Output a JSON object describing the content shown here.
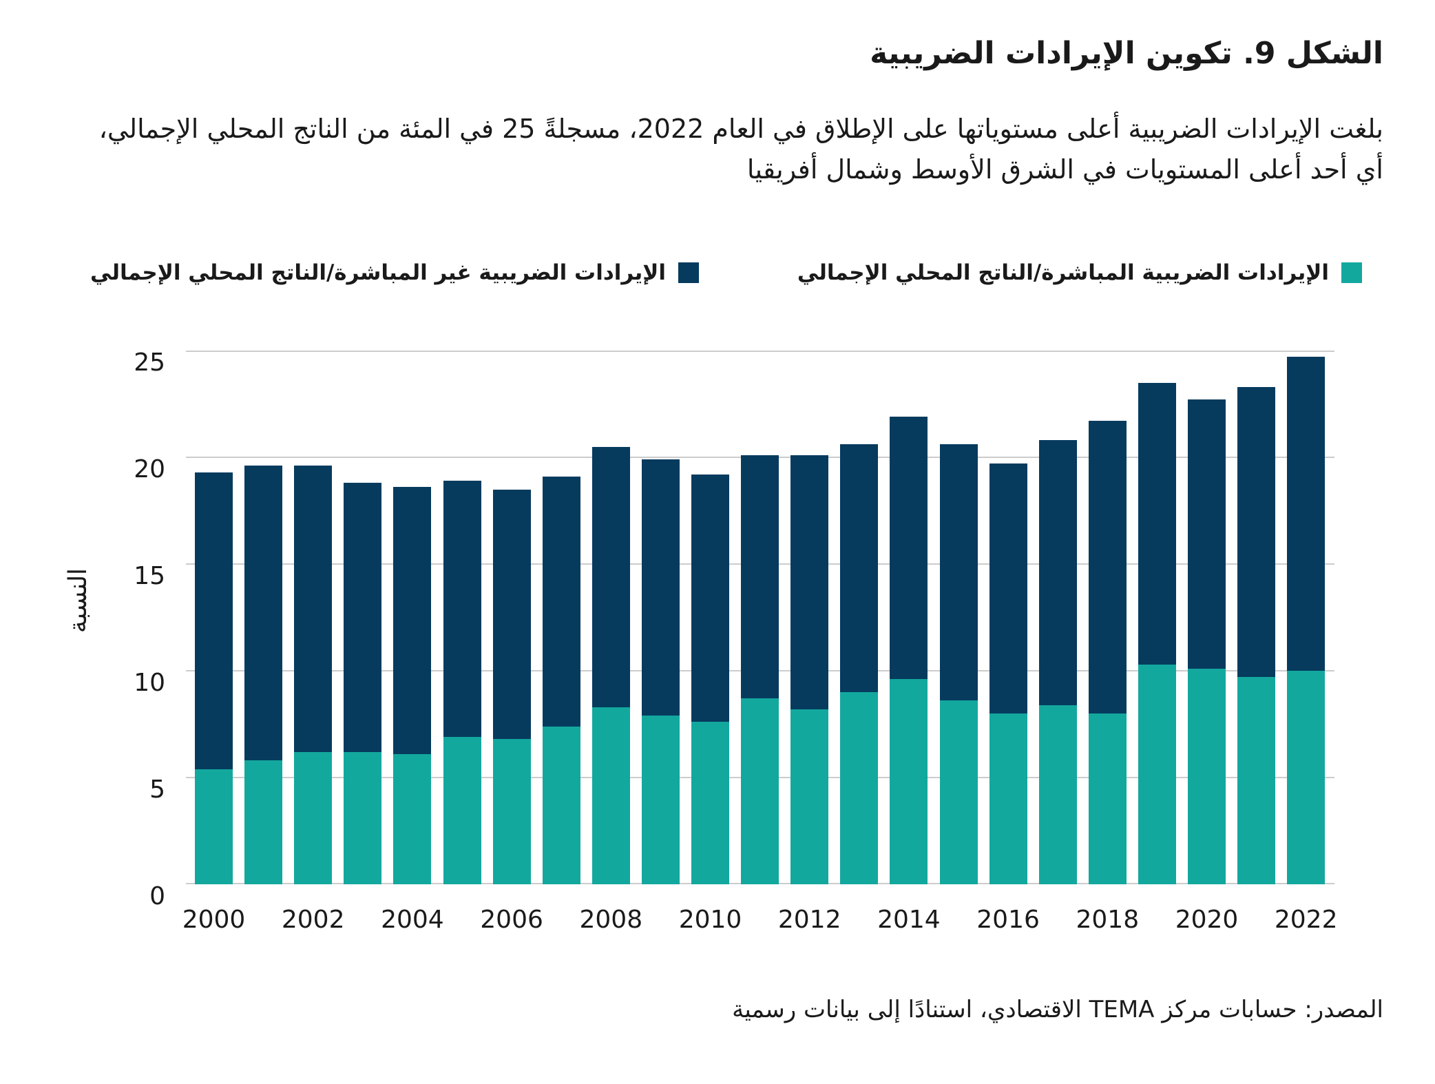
{
  "title": "الشكل 9. تكوين الإيرادات الضريبية",
  "subtitle": "بلغت الإيرادات الضريبية أعلى مستوياتها على الإطلاق في العام 2022، مسجلةً 25 في المئة من الناتج المحلي الإجمالي، أي أحد أعلى المستويات في الشرق الأوسط وشمال أفريقيا",
  "legend": [
    {
      "label": "الإيرادات الضريبية المباشرة/الناتج المحلي الإجمالي",
      "color": "#13A89E"
    },
    {
      "label": "الإيرادات الضريبية غير المباشرة/الناتج المحلي الإجمالي",
      "color": "#063B5E"
    }
  ],
  "source": "المصدر: حسابات مركز TEMA الاقتصادي، استنادًا إلى بيانات رسمية",
  "colors": {
    "direct_tax": "#13A89E",
    "indirect_tax": "#063B5E",
    "gridline": "#cccccc",
    "text": "#1a1a1a"
  },
  "chart_data": {
    "type": "bar",
    "stacked": true,
    "title": "الشكل 9. تكوين الإيرادات الضريبية",
    "xlabel": "",
    "ylabel": "النسبة",
    "ylim": [
      0,
      25
    ],
    "yticks": [
      0,
      5,
      10,
      15,
      20,
      25
    ],
    "grid": true,
    "legend_position": "top",
    "categories": [
      "2000",
      "2001",
      "2002",
      "2003",
      "2004",
      "2005",
      "2006",
      "2007",
      "2008",
      "2009",
      "2010",
      "2011",
      "2012",
      "2013",
      "2014",
      "2015",
      "2016",
      "2017",
      "2018",
      "2019",
      "2020",
      "2021",
      "2022"
    ],
    "x_tick_labels": [
      "2000",
      "2002",
      "2004",
      "2006",
      "2008",
      "2010",
      "2012",
      "2014",
      "2016",
      "2018",
      "2020",
      "2022"
    ],
    "series": [
      {
        "name": "الإيرادات الضريبية المباشرة/الناتج المحلي الإجمالي",
        "color": "#13A89E",
        "values": [
          5.4,
          5.8,
          6.2,
          6.2,
          6.1,
          6.9,
          6.8,
          7.4,
          8.3,
          7.9,
          7.6,
          8.7,
          8.2,
          9.0,
          9.6,
          8.6,
          8.0,
          8.4,
          8.0,
          10.3,
          10.1,
          9.7,
          10.0
        ]
      },
      {
        "name": "الإيرادات الضريبية غير المباشرة/الناتج المحلي الإجمالي",
        "color": "#063B5E",
        "values": [
          13.9,
          13.8,
          13.4,
          12.6,
          12.5,
          12.0,
          11.7,
          11.7,
          12.2,
          12.0,
          11.6,
          11.4,
          11.9,
          11.6,
          12.3,
          12.0,
          11.7,
          12.4,
          13.7,
          13.2,
          12.6,
          13.6,
          14.7
        ]
      }
    ],
    "totals": [
      19.3,
      19.6,
      19.6,
      18.8,
      18.6,
      18.9,
      18.5,
      19.1,
      20.5,
      19.9,
      19.2,
      20.1,
      20.1,
      20.6,
      21.9,
      20.6,
      19.7,
      20.8,
      21.7,
      23.5,
      22.7,
      23.3,
      24.7
    ]
  }
}
